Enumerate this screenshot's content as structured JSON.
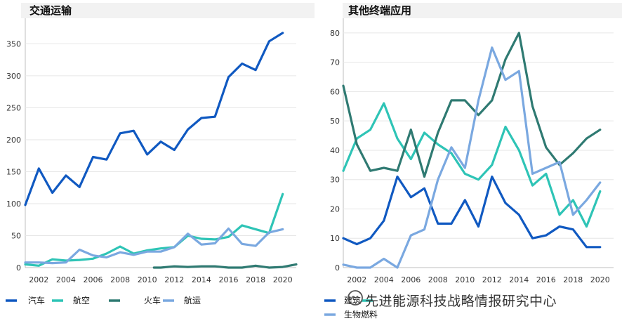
{
  "watermark": "先进能源科技战略情报研究中心",
  "chart_data": [
    {
      "type": "line",
      "title": "交通运输",
      "xlabel": "",
      "ylabel": "",
      "xlim": [
        2001,
        2021
      ],
      "ylim": [
        0,
        390
      ],
      "x_ticks": [
        2002,
        2004,
        2006,
        2008,
        2010,
        2012,
        2014,
        2016,
        2018,
        2020
      ],
      "y_ticks": [
        0,
        50,
        100,
        150,
        200,
        250,
        300,
        350
      ],
      "grid": "horizontal",
      "legend": "bottom",
      "series": [
        {
          "name": "汽车",
          "color": "#1059c1",
          "x": [
            2001,
            2002,
            2003,
            2004,
            2005,
            2006,
            2007,
            2008,
            2009,
            2010,
            2011,
            2012,
            2013,
            2014,
            2015,
            2016,
            2017,
            2018,
            2019,
            2020,
            2021
          ],
          "values": [
            98,
            155,
            117,
            144,
            126,
            173,
            169,
            210,
            214,
            177,
            197,
            184,
            216,
            234,
            236,
            298,
            319,
            309,
            354,
            367,
            null
          ]
        },
        {
          "name": "航空",
          "color": "#2ec4b6",
          "x": [
            2001,
            2002,
            2003,
            2004,
            2005,
            2006,
            2007,
            2008,
            2009,
            2010,
            2011,
            2012,
            2013,
            2014,
            2015,
            2016,
            2017,
            2018,
            2019,
            2020,
            2021
          ],
          "values": [
            5,
            3,
            13,
            11,
            12,
            14,
            22,
            33,
            22,
            27,
            30,
            32,
            50,
            45,
            44,
            48,
            66,
            60,
            54,
            115,
            null
          ]
        },
        {
          "name": "火车",
          "color": "#2f7a72",
          "x": [
            2010.5,
            2011,
            2012,
            2013,
            2014,
            2015,
            2016,
            2017,
            2018,
            2019,
            2020,
            2021
          ],
          "values": [
            0,
            0,
            2,
            1,
            2,
            2,
            0,
            0,
            3,
            0,
            1,
            5
          ]
        },
        {
          "name": "航运",
          "color": "#7aa8e0",
          "x": [
            2001,
            2002,
            2003,
            2004,
            2005,
            2006,
            2007,
            2008,
            2009,
            2010,
            2011,
            2012,
            2013,
            2014,
            2015,
            2016,
            2017,
            2018,
            2019,
            2020,
            2021
          ],
          "values": [
            8,
            8,
            7,
            8,
            28,
            19,
            16,
            24,
            20,
            25,
            25,
            32,
            53,
            36,
            38,
            61,
            37,
            34,
            55,
            60,
            null
          ]
        }
      ]
    },
    {
      "type": "line",
      "title": "其他终端应用",
      "xlabel": "",
      "ylabel": "",
      "xlim": [
        2001,
        2021
      ],
      "ylim": [
        0,
        85
      ],
      "x_ticks": [
        2002,
        2004,
        2006,
        2008,
        2010,
        2012,
        2014,
        2016,
        2018,
        2020
      ],
      "y_ticks": [
        0,
        10,
        20,
        30,
        40,
        50,
        60,
        70,
        80
      ],
      "grid": "horizontal",
      "legend": "bottom",
      "series": [
        {
          "name": "建筑",
          "color": "#1059c1",
          "x": [
            2001,
            2002,
            2003,
            2004,
            2005,
            2006,
            2007,
            2008,
            2009,
            2010,
            2011,
            2012,
            2013,
            2014,
            2015,
            2016,
            2017,
            2018,
            2019,
            2020,
            2021
          ],
          "values": [
            10,
            8,
            10,
            16,
            31,
            24,
            27,
            15,
            15,
            23,
            14,
            31,
            22,
            18,
            10,
            11,
            14,
            13,
            7,
            7,
            null
          ]
        },
        {
          "name": "",
          "color": "#2ec4b6",
          "x": [
            2001,
            2002,
            2003,
            2004,
            2005,
            2006,
            2007,
            2008,
            2009,
            2010,
            2011,
            2012,
            2013,
            2014,
            2015,
            2016,
            2017,
            2018,
            2019,
            2020,
            2021
          ],
          "values": [
            33,
            44,
            47,
            56,
            44,
            37,
            46,
            42,
            39,
            32,
            30,
            35,
            48,
            40,
            28,
            32,
            18,
            23,
            14,
            26,
            null
          ]
        },
        {
          "name": "",
          "color": "#2f7a72",
          "x": [
            2001,
            2002,
            2003,
            2004,
            2005,
            2006,
            2007,
            2008,
            2009,
            2010,
            2011,
            2012,
            2013,
            2014,
            2015,
            2016,
            2017,
            2018,
            2019,
            2020,
            2021
          ],
          "values": [
            62,
            42,
            33,
            34,
            33,
            47,
            31,
            46,
            57,
            57,
            52,
            57,
            71,
            80,
            55,
            41,
            35,
            39,
            44,
            47,
            null
          ]
        },
        {
          "name": "生物燃料",
          "color": "#7aa8e0",
          "x": [
            2001,
            2002,
            2003,
            2004,
            2005,
            2006,
            2007,
            2008,
            2009,
            2010,
            2011,
            2012,
            2013,
            2014,
            2015,
            2016,
            2017,
            2018,
            2019,
            2020,
            2021
          ],
          "values": [
            1,
            0,
            0,
            3,
            0,
            11,
            13,
            30,
            41,
            34,
            57,
            75,
            64,
            67,
            32,
            34,
            36,
            18,
            23,
            29,
            null
          ]
        }
      ]
    }
  ]
}
